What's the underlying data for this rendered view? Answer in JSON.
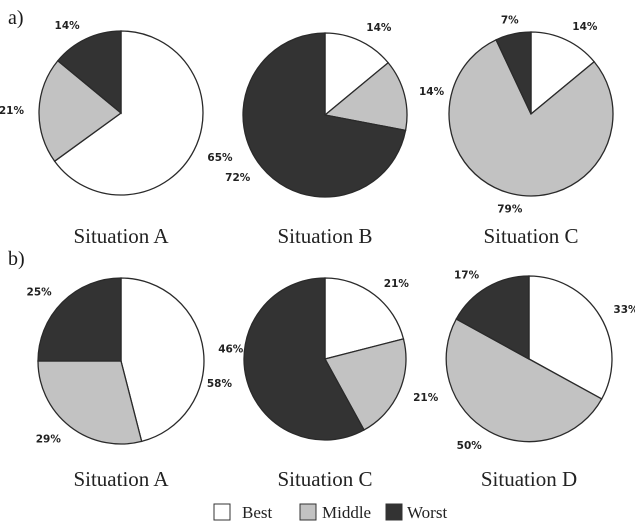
{
  "colors": {
    "best": "#ffffff",
    "middle": "#c2c2c2",
    "worst": "#333333"
  },
  "panels": {
    "a": {
      "label": "a)"
    },
    "b": {
      "label": "b)"
    }
  },
  "legend": {
    "best": "Best",
    "middle": "Middle",
    "worst": "Worst"
  },
  "chart_data": [
    {
      "type": "pie",
      "panel": "a)",
      "title": "Situation A",
      "labels": [
        "Best",
        "Middle",
        "Worst"
      ],
      "values": [
        65,
        21,
        14
      ],
      "value_labels": [
        "65%",
        "21%",
        "14%"
      ]
    },
    {
      "type": "pie",
      "panel": "a)",
      "title": "Situation B",
      "labels": [
        "Best",
        "Middle",
        "Worst"
      ],
      "values": [
        14,
        14,
        72
      ],
      "value_labels": [
        "14%",
        "14%",
        "72%"
      ]
    },
    {
      "type": "pie",
      "panel": "a)",
      "title": "Situation C",
      "labels": [
        "Best",
        "Middle",
        "Worst"
      ],
      "values": [
        14,
        79,
        7
      ],
      "value_labels": [
        "14%",
        "79%",
        "7%"
      ]
    },
    {
      "type": "pie",
      "panel": "b)",
      "title": "Situation A",
      "labels": [
        "Best",
        "Middle",
        "Worst"
      ],
      "values": [
        46,
        29,
        25
      ],
      "value_labels": [
        "46%",
        "29%",
        "25%"
      ]
    },
    {
      "type": "pie",
      "panel": "b)",
      "title": "Situation C",
      "labels": [
        "Best",
        "Middle",
        "Worst"
      ],
      "values": [
        21,
        21,
        58
      ],
      "value_labels": [
        "21%",
        "21%",
        "58%"
      ]
    },
    {
      "type": "pie",
      "panel": "b)",
      "title": "Situation D",
      "labels": [
        "Best",
        "Middle",
        "Worst"
      ],
      "values": [
        33,
        50,
        17
      ],
      "value_labels": [
        "33%",
        "50%",
        "17%"
      ]
    }
  ]
}
